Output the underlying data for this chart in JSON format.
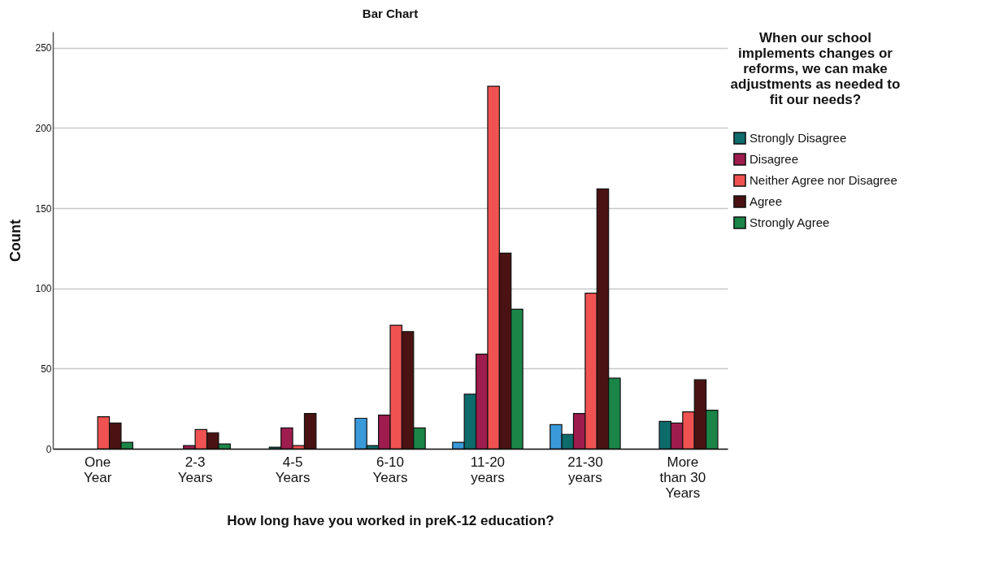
{
  "chart_data": {
    "type": "bar",
    "title": "Bar Chart",
    "xlabel": "How long have you worked in preK-12 education?",
    "ylabel": "Count",
    "legend_title": "When our school implements changes or reforms, we can make adjustments as needed to fit our needs?",
    "categories": [
      "One Year",
      "2-3 Years",
      "4-5 Years",
      "6-10 Years",
      "11-20 years",
      "21-30 years",
      "More than 30 Years"
    ],
    "series": [
      {
        "color": "#3a9ad9",
        "values": [
          null,
          null,
          null,
          19,
          4,
          15,
          null
        ]
      },
      {
        "name": "Strongly Disagree",
        "color": "#0e6b6b",
        "values": [
          null,
          null,
          1,
          2,
          34,
          9,
          17
        ]
      },
      {
        "name": "Disagree",
        "color": "#9e1c4e",
        "values": [
          null,
          2,
          13,
          21,
          59,
          22,
          16
        ]
      },
      {
        "name": "Neither Agree nor Disagree",
        "color": "#f05252",
        "values": [
          20,
          12,
          2,
          77,
          226,
          97,
          23
        ]
      },
      {
        "name": "Agree",
        "color": "#4a1212",
        "values": [
          16,
          10,
          22,
          73,
          122,
          162,
          43
        ]
      },
      {
        "name": "Strongly Agree",
        "color": "#1a8547",
        "values": [
          4,
          3,
          null,
          13,
          87,
          44,
          24
        ]
      }
    ],
    "ylim": [
      0,
      260
    ],
    "yticks": [
      0,
      50,
      100,
      150,
      200,
      250
    ],
    "grid": "y",
    "legend": "right"
  }
}
